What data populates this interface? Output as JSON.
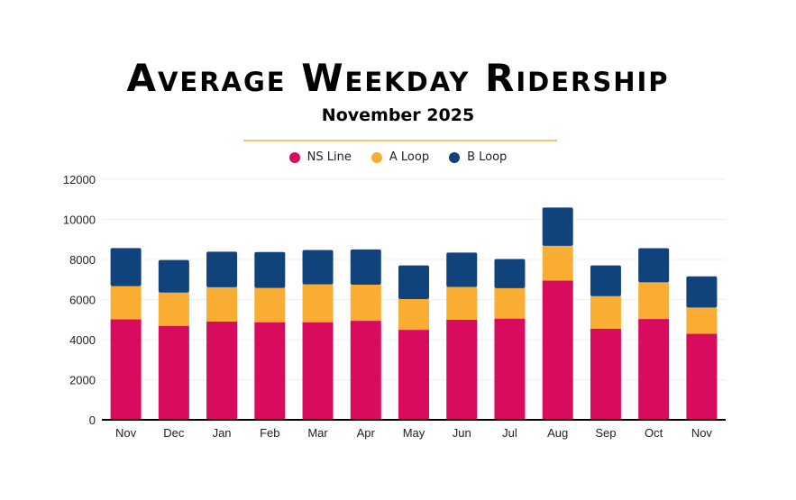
{
  "chart_data": {
    "type": "bar",
    "stacked": true,
    "title": "Average Weekday Ridership",
    "subtitle": "November 2025",
    "xlabel": "",
    "ylabel": "",
    "ylim": [
      0,
      12000
    ],
    "yticks": [
      0,
      2000,
      4000,
      6000,
      8000,
      10000,
      12000
    ],
    "grid": true,
    "legend_position": "top",
    "categories": [
      "Nov",
      "Dec",
      "Jan",
      "Feb",
      "Mar",
      "Apr",
      "May",
      "Jun",
      "Jul",
      "Aug",
      "Sep",
      "Oct",
      "Nov"
    ],
    "series": [
      {
        "name": "NS Line",
        "color": "#d90b5f",
        "values": [
          5010,
          4690,
          4900,
          4870,
          4870,
          4940,
          4490,
          4990,
          5050,
          6950,
          4540,
          5030,
          4290
        ]
      },
      {
        "name": "A Loop",
        "color": "#f9ae33",
        "values": [
          1660,
          1660,
          1710,
          1710,
          1890,
          1800,
          1530,
          1640,
          1520,
          1730,
          1630,
          1830,
          1310
        ]
      },
      {
        "name": "B Loop",
        "color": "#10427c",
        "values": [
          1900,
          1620,
          1780,
          1790,
          1710,
          1760,
          1680,
          1710,
          1450,
          1910,
          1530,
          1700,
          1560
        ]
      }
    ]
  }
}
